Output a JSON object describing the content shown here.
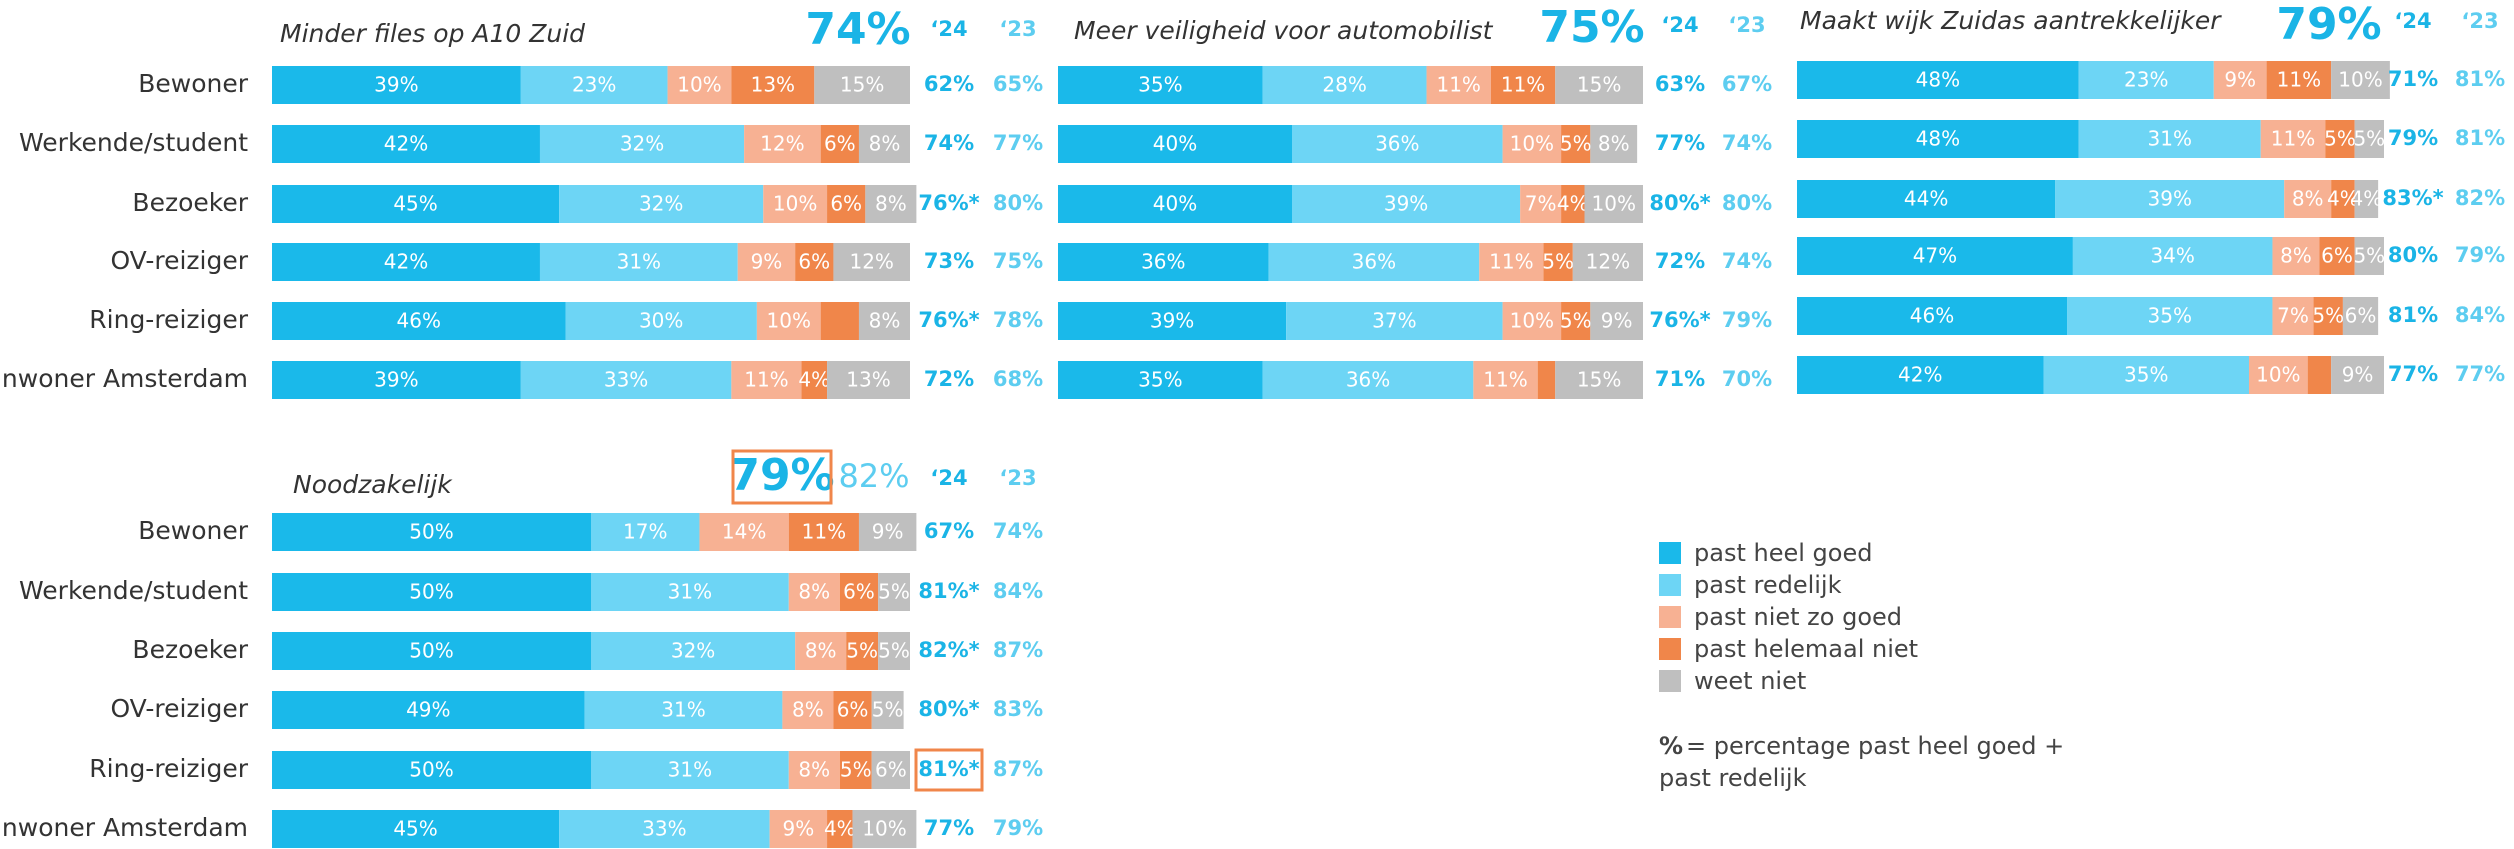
{
  "chart_data": [
    {
      "type": "bar",
      "orientation": "horizontal",
      "stacked": true,
      "title": "Minder files op A10 Zuid",
      "xlim": [
        0,
        100
      ],
      "overall": {
        "values": [
          74
        ],
        "value_labels": [
          "74%"
        ]
      },
      "year_labels": [
        "‘24",
        "‘23"
      ],
      "categories": [
        "Bewoner",
        "Werkende/student",
        "Bezoeker",
        "OV-reiziger",
        "Ring-reiziger",
        "Inwoner Amsterdam"
      ],
      "series": [
        {
          "name": "past heel goed",
          "color": "#1ab9ea",
          "values": [
            39,
            42,
            45,
            42,
            46,
            39
          ],
          "value_labels": [
            "39%",
            "42%",
            "45%",
            "42%",
            "46%",
            "39%"
          ]
        },
        {
          "name": "past redelijk",
          "color": "#6dd5f5",
          "values": [
            23,
            32,
            32,
            31,
            30,
            33
          ],
          "value_labels": [
            "23%",
            "32%",
            "32%",
            "31%",
            "30%",
            "33%"
          ]
        },
        {
          "name": "past niet zo goed",
          "color": "#f7b193",
          "values": [
            10,
            12,
            10,
            9,
            10,
            11
          ],
          "value_labels": [
            "10%",
            "12%",
            "10%",
            "9%",
            "10%",
            "11%"
          ]
        },
        {
          "name": "past helemaal niet",
          "color": "#f0864a",
          "values": [
            13,
            6,
            6,
            6,
            6,
            4
          ],
          "value_labels": [
            "13%",
            "6%",
            "6%",
            "6%",
            null,
            "4%"
          ]
        },
        {
          "name": "weet niet",
          "color": "#bfbfbf",
          "values": [
            15,
            8,
            8,
            12,
            8,
            13
          ],
          "value_labels": [
            "15%",
            "8%",
            "8%",
            "12%",
            "8%",
            "13%"
          ]
        }
      ],
      "totals_24": {
        "values": [
          62,
          74,
          76,
          73,
          76,
          72
        ],
        "value_labels": [
          "62%",
          "74%",
          "76%*",
          "73%",
          "76%*",
          "72%"
        ]
      },
      "totals_23": {
        "values": [
          65,
          77,
          80,
          75,
          78,
          68
        ],
        "value_labels": [
          "65%",
          "77%",
          "80%",
          "75%",
          "78%",
          "68%"
        ]
      }
    },
    {
      "type": "bar",
      "orientation": "horizontal",
      "stacked": true,
      "title": "Meer veiligheid voor automobilist",
      "xlim": [
        0,
        100
      ],
      "overall": {
        "values": [
          75
        ],
        "value_labels": [
          "75%"
        ]
      },
      "year_labels": [
        "‘24",
        "‘23"
      ],
      "series": [
        {
          "name": "past heel goed",
          "color": "#1ab9ea",
          "values": [
            35,
            40,
            40,
            36,
            39,
            35
          ],
          "value_labels": [
            "35%",
            "40%",
            "40%",
            "36%",
            "39%",
            "35%"
          ]
        },
        {
          "name": "past redelijk",
          "color": "#6dd5f5",
          "values": [
            28,
            36,
            39,
            36,
            37,
            36
          ],
          "value_labels": [
            "28%",
            "36%",
            "39%",
            "36%",
            "37%",
            "36%"
          ]
        },
        {
          "name": "past niet zo goed",
          "color": "#f7b193",
          "values": [
            11,
            10,
            7,
            11,
            10,
            11
          ],
          "value_labels": [
            "11%",
            "10%",
            "7%",
            "11%",
            "10%",
            "11%"
          ]
        },
        {
          "name": "past helemaal niet",
          "color": "#f0864a",
          "values": [
            11,
            5,
            4,
            5,
            5,
            3
          ],
          "value_labels": [
            "11%",
            "5%",
            "4%",
            "5%",
            "5%",
            null
          ]
        },
        {
          "name": "weet niet",
          "color": "#bfbfbf",
          "values": [
            15,
            8,
            10,
            12,
            9,
            15
          ],
          "value_labels": [
            "15%",
            "8%",
            "10%",
            "12%",
            "9%",
            "15%"
          ]
        }
      ],
      "totals_24": {
        "values": [
          63,
          77,
          80,
          72,
          76,
          71
        ],
        "value_labels": [
          "63%",
          "77%",
          "80%*",
          "72%",
          "76%*",
          "71%"
        ]
      },
      "totals_23": {
        "values": [
          67,
          74,
          80,
          74,
          79,
          70
        ],
        "value_labels": [
          "67%",
          "74%",
          "80%",
          "74%",
          "79%",
          "70%"
        ]
      }
    },
    {
      "type": "bar",
      "orientation": "horizontal",
      "stacked": true,
      "title": "Maakt wijk Zuidas aantrekkelijker",
      "xlim": [
        0,
        100
      ],
      "overall": {
        "values": [
          79
        ],
        "value_labels": [
          "79%"
        ]
      },
      "year_labels": [
        "‘24",
        "‘23"
      ],
      "series": [
        {
          "name": "past heel goed",
          "color": "#1ab9ea",
          "values": [
            48,
            48,
            44,
            47,
            46,
            42
          ],
          "value_labels": [
            "48%",
            "48%",
            "44%",
            "47%",
            "46%",
            "42%"
          ]
        },
        {
          "name": "past redelijk",
          "color": "#6dd5f5",
          "values": [
            23,
            31,
            39,
            34,
            35,
            35
          ],
          "value_labels": [
            "23%",
            "31%",
            "39%",
            "34%",
            "35%",
            "35%"
          ]
        },
        {
          "name": "past niet zo goed",
          "color": "#f7b193",
          "values": [
            9,
            11,
            8,
            8,
            7,
            10
          ],
          "value_labels": [
            "9%",
            "11%",
            "8%",
            "8%",
            "7%",
            "10%"
          ]
        },
        {
          "name": "past helemaal niet",
          "color": "#f0864a",
          "values": [
            11,
            5,
            4,
            6,
            5,
            4
          ],
          "value_labels": [
            "11%",
            "5%",
            "4%",
            "6%",
            "5%",
            null
          ]
        },
        {
          "name": "weet niet",
          "color": "#bfbfbf",
          "values": [
            10,
            5,
            4,
            5,
            6,
            9
          ],
          "value_labels": [
            "10%",
            "5%",
            "4%",
            "5%",
            "6%",
            "9%"
          ]
        }
      ],
      "totals_24": {
        "values": [
          71,
          79,
          83,
          80,
          81,
          77
        ],
        "value_labels": [
          "71%",
          "79%",
          "83%*",
          "80%",
          "81%",
          "77%"
        ]
      },
      "totals_23": {
        "values": [
          81,
          81,
          82,
          79,
          84,
          77
        ],
        "value_labels": [
          "81%",
          "81%",
          "82%",
          "79%",
          "84%",
          "77%"
        ]
      }
    },
    {
      "type": "bar",
      "orientation": "horizontal",
      "stacked": true,
      "title": "Noodzakelijk",
      "xlim": [
        0,
        100
      ],
      "overall": {
        "values": [
          79,
          82
        ],
        "value_labels": [
          "79%",
          "82%"
        ]
      },
      "overall_boxed": true,
      "year_labels": [
        "‘24",
        "‘23"
      ],
      "categories": [
        "Bewoner",
        "Werkende/student",
        "Bezoeker",
        "OV-reiziger",
        "Ring-reiziger",
        "Inwoner Amsterdam"
      ],
      "series": [
        {
          "name": "past heel goed",
          "color": "#1ab9ea",
          "values": [
            50,
            50,
            50,
            49,
            50,
            45
          ],
          "value_labels": [
            "50%",
            "50%",
            "50%",
            "49%",
            "50%",
            "45%"
          ]
        },
        {
          "name": "past redelijk",
          "color": "#6dd5f5",
          "values": [
            17,
            31,
            32,
            31,
            31,
            33
          ],
          "value_labels": [
            "17%",
            "31%",
            "32%",
            "31%",
            "31%",
            "33%"
          ]
        },
        {
          "name": "past niet zo goed",
          "color": "#f7b193",
          "values": [
            14,
            8,
            8,
            8,
            8,
            9
          ],
          "value_labels": [
            "14%",
            "8%",
            "8%",
            "8%",
            "8%",
            "9%"
          ]
        },
        {
          "name": "past helemaal niet",
          "color": "#f0864a",
          "values": [
            11,
            6,
            5,
            6,
            5,
            4
          ],
          "value_labels": [
            "11%",
            "6%",
            "5%",
            "6%",
            "5%",
            "4%"
          ]
        },
        {
          "name": "weet niet",
          "color": "#bfbfbf",
          "values": [
            9,
            5,
            5,
            5,
            6,
            10
          ],
          "value_labels": [
            "9%",
            "5%",
            "5%",
            "5%",
            "6%",
            "10%"
          ]
        }
      ],
      "totals_24": {
        "values": [
          67,
          81,
          82,
          80,
          81,
          77
        ],
        "value_labels": [
          "67%",
          "81%*",
          "82%*",
          "80%*",
          "81%*",
          "77%"
        ]
      },
      "totals_24_boxed_row": 4,
      "totals_23": {
        "values": [
          74,
          84,
          87,
          83,
          87,
          79
        ],
        "value_labels": [
          "74%",
          "84%",
          "87%",
          "83%",
          "87%",
          "79%"
        ]
      }
    }
  ],
  "note": {
    "symbol": "%",
    "lines": [
      "= percentage past heel goed +",
      "past redelijk"
    ]
  }
}
